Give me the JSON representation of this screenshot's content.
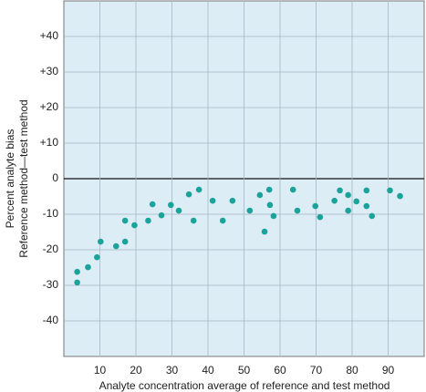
{
  "chart_data": {
    "type": "scatter",
    "y_label": [
      "Percent analyte bias",
      "Reference method—test method"
    ],
    "x_label": "Analyte concentration average of reference and test method",
    "x": [
      3.7,
      3.7,
      6.7,
      9.2,
      10.2,
      14.5,
      17.0,
      17.0,
      19.6,
      23.4,
      24.6,
      27.1,
      29.7,
      31.9,
      34.7,
      36.0,
      37.5,
      41.3,
      44.1,
      46.8,
      51.6,
      54.4,
      55.7,
      57.0,
      57.2,
      58.2,
      63.6,
      64.8,
      69.8,
      71.1,
      75.1,
      76.6,
      78.9,
      78.9,
      81.2,
      84.0,
      84.0,
      85.5,
      90.5,
      93.3
    ],
    "values": [
      -26.2,
      -29.2,
      -24.9,
      -22.1,
      -17.7,
      -19.0,
      -17.7,
      -11.8,
      -13.1,
      -11.8,
      -7.2,
      -10.3,
      -7.4,
      -9.0,
      -4.4,
      -11.8,
      -3.1,
      -6.2,
      -11.8,
      -6.2,
      -9.0,
      -4.6,
      -14.9,
      -3.1,
      -7.4,
      -10.5,
      -3.1,
      -9.0,
      -7.7,
      -10.8,
      -6.2,
      -3.3,
      -4.6,
      -9.0,
      -6.4,
      -3.3,
      -7.7,
      -10.5,
      -3.3,
      -4.9
    ],
    "color": "#1ba39b",
    "xlim": [
      0,
      100
    ],
    "ylim": [
      -50,
      50
    ],
    "xticks": [
      10,
      20,
      30,
      40,
      50,
      60,
      70,
      80,
      90
    ],
    "yticks": [
      {
        "value": 40,
        "label": "+40"
      },
      {
        "value": 30,
        "label": "+30"
      },
      {
        "value": 20,
        "label": "+20"
      },
      {
        "value": 10,
        "label": "+10"
      },
      0,
      -10,
      -20,
      -30,
      -40
    ],
    "grid": true
  }
}
